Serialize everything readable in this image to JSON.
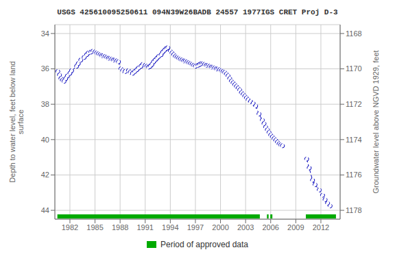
{
  "chart_data": {
    "type": "line",
    "title": "USGS 425610095250611 094N39W26BADB 24557 1977IGS CRET Proj D-3",
    "y_label": "Depth to water level, feet below land\nsurface",
    "y2_label": "Groundwater level above NGVD 1929, feet",
    "xlim": [
      1980.2,
      2014.3
    ],
    "xticks": [
      1982,
      1985,
      1988,
      1991,
      1994,
      1997,
      2000,
      2003,
      2006,
      2009,
      2012
    ],
    "ylim": [
      44.5,
      33.5
    ],
    "yticks": [
      34,
      36,
      38,
      40,
      42,
      44
    ],
    "y2lim": [
      1178.5,
      1167.5
    ],
    "y2ticks": [
      1168,
      1170,
      1172,
      1174,
      1176,
      1178
    ],
    "grid": true,
    "legend": "bottom",
    "series": [
      {
        "color": "#0000bb",
        "marker": "circle",
        "line_style": "dashed",
        "x": [
          1980.55,
          1980.75,
          1980.92,
          1981.1,
          1981.3,
          1981.5,
          1981.7,
          1982.0,
          1982.2,
          1982.8,
          1983.0,
          1983.3,
          1983.7,
          1984.0,
          1984.2,
          1984.5,
          1984.75,
          1985.0,
          1985.2,
          1985.4,
          1985.6,
          1985.8,
          1986.0,
          1986.2,
          1986.4,
          1986.6,
          1986.8,
          1987.0,
          1987.2,
          1987.4,
          1987.6,
          1987.8,
          1988.1,
          1988.3,
          1988.6,
          1989.0,
          1989.2,
          1989.5,
          1989.75,
          1990.0,
          1990.2,
          1990.5,
          1990.7,
          1991.0,
          1991.2,
          1991.4,
          1991.6,
          1991.8,
          1992.0,
          1992.2,
          1992.4,
          1992.6,
          1992.9,
          1993.1,
          1993.3,
          1993.5,
          1993.7,
          1994.0,
          1994.2,
          1994.4,
          1994.6,
          1994.8,
          1995.0,
          1995.2,
          1995.4,
          1995.6,
          1995.8,
          1996.0,
          1996.2,
          1996.4,
          1996.6,
          1996.8,
          1997.0,
          1997.3,
          1997.5,
          1997.7,
          1997.9,
          1998.1,
          1998.3,
          1998.5,
          1998.7,
          1998.9,
          1999.1,
          1999.3,
          1999.5,
          1999.7,
          1999.9,
          2000.1,
          2000.3,
          2000.5,
          2000.7,
          2000.9,
          2001.1,
          2001.3,
          2001.5,
          2001.7,
          2001.9,
          2002.1,
          2002.3,
          2002.5,
          2002.7,
          2002.9,
          2003.1,
          2003.3,
          2003.6,
          2003.9,
          2004.2,
          2004.6,
          2005.0,
          2005.2,
          2005.4,
          2005.6,
          2005.8,
          2006.0,
          2006.2,
          2006.4,
          2006.6,
          2006.8,
          2007.0,
          2007.2,
          2007.4
        ],
        "values": [
          36.15,
          36.35,
          36.55,
          36.65,
          36.7,
          36.55,
          36.4,
          36.25,
          36.1,
          35.85,
          35.7,
          35.5,
          35.35,
          35.2,
          35.1,
          35.05,
          35.0,
          35.05,
          35.1,
          35.15,
          35.2,
          35.25,
          35.25,
          35.3,
          35.35,
          35.4,
          35.4,
          35.45,
          35.5,
          35.5,
          35.55,
          35.6,
          36.0,
          36.1,
          36.15,
          36.1,
          36.2,
          36.25,
          36.15,
          36.05,
          35.95,
          35.85,
          35.75,
          35.8,
          35.85,
          35.9,
          35.85,
          35.75,
          35.6,
          35.5,
          35.4,
          35.3,
          35.2,
          35.05,
          34.95,
          34.85,
          34.8,
          35.0,
          35.1,
          35.2,
          35.3,
          35.35,
          35.4,
          35.45,
          35.5,
          35.55,
          35.55,
          35.6,
          35.65,
          35.7,
          35.75,
          35.8,
          35.85,
          35.8,
          35.75,
          35.7,
          35.7,
          35.75,
          35.8,
          35.8,
          35.85,
          35.9,
          35.9,
          35.95,
          36.0,
          36.0,
          36.05,
          36.1,
          36.15,
          36.2,
          36.3,
          36.4,
          36.55,
          36.7,
          36.8,
          36.9,
          37.0,
          37.1,
          37.2,
          37.35,
          37.45,
          37.55,
          37.65,
          37.75,
          37.85,
          37.95,
          38.1,
          38.55,
          38.9,
          39.1,
          39.3,
          39.45,
          39.6,
          39.75,
          39.85,
          39.95,
          40.05,
          40.15,
          40.25,
          40.3,
          40.35
        ]
      },
      {
        "color": "#0000bb",
        "marker": "circle",
        "line_style": "dashed",
        "x": [
          2010.3,
          2010.6,
          2011.0,
          2011.3,
          2011.8,
          2012.2,
          2012.5,
          2012.8,
          2013.1
        ],
        "values": [
          41.1,
          41.6,
          42.3,
          42.55,
          42.85,
          43.15,
          43.4,
          43.6,
          43.75
        ]
      }
    ],
    "approved_periods": {
      "name": "Period of approved data",
      "color": "#00aa00",
      "ranges": [
        [
          1980.5,
          2004.7
        ],
        [
          2005.55,
          2005.75
        ],
        [
          2005.95,
          2006.2
        ],
        [
          2010.2,
          2013.8
        ]
      ]
    }
  }
}
